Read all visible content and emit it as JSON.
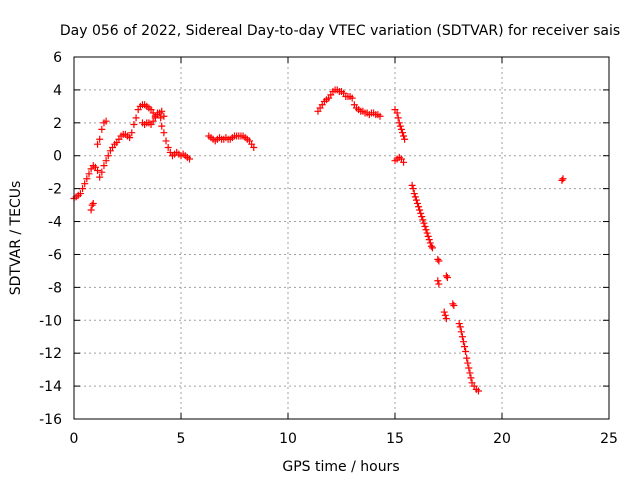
{
  "chart_data": {
    "type": "scatter",
    "title": "Day 056 of 2022, Sidereal Day-to-day VTEC variation (SDTVAR) for receiver sais",
    "xlabel": "GPS time / hours",
    "ylabel": "SDTVAR / TECUs",
    "xlim": [
      0,
      25
    ],
    "ylim": [
      -16,
      6
    ],
    "xticks": [
      0,
      5,
      10,
      15,
      20,
      25
    ],
    "yticks": [
      -16,
      -14,
      -12,
      -10,
      -8,
      -6,
      -4,
      -2,
      0,
      2,
      4,
      6
    ],
    "grid": true,
    "marker": "+",
    "color": "#ff0000",
    "series": [
      {
        "name": "SDTVAR",
        "segments": [
          [
            [
              0.0,
              -2.6
            ],
            [
              0.1,
              -2.5
            ],
            [
              0.2,
              -2.4
            ],
            [
              0.3,
              -2.3
            ],
            [
              0.4,
              -2.0
            ],
            [
              0.5,
              -1.7
            ],
            [
              0.6,
              -1.4
            ],
            [
              0.7,
              -1.1
            ],
            [
              0.8,
              -0.8
            ],
            [
              0.9,
              -0.6
            ],
            [
              1.0,
              -0.7
            ],
            [
              1.1,
              -0.9
            ]
          ],
          [
            [
              0.8,
              -3.3
            ],
            [
              0.85,
              -3.0
            ],
            [
              0.9,
              -2.9
            ]
          ],
          [
            [
              1.1,
              0.7
            ],
            [
              1.2,
              1.0
            ],
            [
              1.3,
              1.6
            ],
            [
              1.4,
              2.0
            ],
            [
              1.5,
              2.1
            ]
          ],
          [
            [
              1.2,
              -1.3
            ],
            [
              1.3,
              -1.0
            ],
            [
              1.4,
              -0.6
            ],
            [
              1.5,
              -0.3
            ],
            [
              1.6,
              0.0
            ],
            [
              1.7,
              0.3
            ],
            [
              1.8,
              0.5
            ],
            [
              1.9,
              0.7
            ],
            [
              2.0,
              0.8
            ],
            [
              2.1,
              1.0
            ],
            [
              2.2,
              1.2
            ],
            [
              2.3,
              1.3
            ],
            [
              2.4,
              1.3
            ],
            [
              2.5,
              1.2
            ],
            [
              2.6,
              1.1
            ],
            [
              2.7,
              1.4
            ],
            [
              2.8,
              1.9
            ],
            [
              2.9,
              2.3
            ],
            [
              3.0,
              2.8
            ],
            [
              3.1,
              3.0
            ],
            [
              3.2,
              3.1
            ],
            [
              3.3,
              3.1
            ],
            [
              3.4,
              3.0
            ],
            [
              3.5,
              2.9
            ],
            [
              3.6,
              2.8
            ],
            [
              3.7,
              2.6
            ],
            [
              3.8,
              2.4
            ],
            [
              3.9,
              2.5
            ],
            [
              4.0,
              2.6
            ],
            [
              4.05,
              2.3
            ],
            [
              4.1,
              1.8
            ],
            [
              4.2,
              1.4
            ],
            [
              4.3,
              0.9
            ],
            [
              4.4,
              0.5
            ],
            [
              4.5,
              0.2
            ],
            [
              4.6,
              0.0
            ],
            [
              4.7,
              0.1
            ],
            [
              4.8,
              0.2
            ],
            [
              4.9,
              0.1
            ],
            [
              5.0,
              0.0
            ],
            [
              5.1,
              0.1
            ],
            [
              5.2,
              0.0
            ],
            [
              5.3,
              -0.1
            ],
            [
              5.4,
              -0.2
            ]
          ],
          [
            [
              3.2,
              2.0
            ],
            [
              3.3,
              1.9
            ],
            [
              3.4,
              2.0
            ],
            [
              3.5,
              2.0
            ],
            [
              3.6,
              1.9
            ],
            [
              3.7,
              2.1
            ],
            [
              3.8,
              2.3
            ],
            [
              3.9,
              2.6
            ],
            [
              4.0,
              2.6
            ],
            [
              4.1,
              2.7
            ],
            [
              4.2,
              2.4
            ]
          ],
          [
            [
              6.3,
              1.2
            ],
            [
              6.4,
              1.1
            ],
            [
              6.5,
              1.0
            ],
            [
              6.6,
              0.9
            ],
            [
              6.7,
              1.0
            ],
            [
              6.8,
              1.1
            ],
            [
              6.9,
              1.0
            ],
            [
              7.0,
              1.0
            ],
            [
              7.1,
              1.1
            ],
            [
              7.2,
              1.0
            ],
            [
              7.3,
              1.0
            ],
            [
              7.4,
              1.1
            ],
            [
              7.5,
              1.2
            ],
            [
              7.6,
              1.2
            ],
            [
              7.7,
              1.2
            ],
            [
              7.8,
              1.2
            ],
            [
              7.9,
              1.2
            ],
            [
              8.0,
              1.1
            ],
            [
              8.1,
              1.0
            ],
            [
              8.2,
              0.9
            ],
            [
              8.3,
              0.7
            ],
            [
              8.4,
              0.5
            ]
          ],
          [
            [
              11.4,
              2.7
            ],
            [
              11.5,
              2.9
            ],
            [
              11.6,
              3.1
            ],
            [
              11.7,
              3.3
            ],
            [
              11.8,
              3.4
            ],
            [
              11.9,
              3.5
            ],
            [
              12.0,
              3.7
            ],
            [
              12.1,
              3.9
            ],
            [
              12.2,
              4.0
            ],
            [
              12.3,
              4.0
            ],
            [
              12.4,
              3.9
            ],
            [
              12.5,
              3.9
            ],
            [
              12.6,
              3.8
            ],
            [
              12.7,
              3.6
            ],
            [
              12.8,
              3.6
            ],
            [
              12.9,
              3.6
            ],
            [
              13.0,
              3.5
            ],
            [
              13.1,
              3.1
            ],
            [
              13.2,
              2.9
            ],
            [
              13.3,
              2.8
            ],
            [
              13.4,
              2.7
            ],
            [
              13.5,
              2.7
            ],
            [
              13.6,
              2.6
            ],
            [
              13.7,
              2.6
            ],
            [
              13.8,
              2.5
            ],
            [
              13.9,
              2.6
            ],
            [
              14.0,
              2.6
            ],
            [
              14.1,
              2.5
            ],
            [
              14.2,
              2.5
            ],
            [
              14.3,
              2.4
            ]
          ],
          [
            [
              15.0,
              2.8
            ],
            [
              15.1,
              2.6
            ],
            [
              15.15,
              2.3
            ],
            [
              15.2,
              2.0
            ],
            [
              15.25,
              1.8
            ],
            [
              15.3,
              1.6
            ],
            [
              15.35,
              1.4
            ],
            [
              15.4,
              1.2
            ],
            [
              15.45,
              1.0
            ]
          ],
          [
            [
              15.0,
              -0.3
            ],
            [
              15.1,
              -0.2
            ],
            [
              15.2,
              -0.1
            ],
            [
              15.3,
              -0.2
            ],
            [
              15.4,
              -0.4
            ]
          ],
          [
            [
              15.8,
              -1.8
            ],
            [
              15.85,
              -2.0
            ],
            [
              15.9,
              -2.3
            ],
            [
              15.95,
              -2.5
            ],
            [
              16.0,
              -2.7
            ],
            [
              16.05,
              -2.9
            ],
            [
              16.1,
              -3.1
            ],
            [
              16.15,
              -3.3
            ],
            [
              16.2,
              -3.5
            ],
            [
              16.25,
              -3.7
            ],
            [
              16.3,
              -3.9
            ],
            [
              16.35,
              -4.1
            ],
            [
              16.4,
              -4.3
            ],
            [
              16.45,
              -4.5
            ],
            [
              16.5,
              -4.7
            ],
            [
              16.55,
              -4.9
            ],
            [
              16.6,
              -5.1
            ],
            [
              16.65,
              -5.3
            ],
            [
              16.7,
              -5.5
            ],
            [
              16.75,
              -5.6
            ]
          ],
          [
            [
              17.0,
              -6.3
            ],
            [
              17.05,
              -6.4
            ],
            [
              17.0,
              -7.6
            ],
            [
              17.05,
              -7.8
            ]
          ],
          [
            [
              17.3,
              -9.5
            ],
            [
              17.35,
              -9.7
            ],
            [
              17.4,
              -9.9
            ],
            [
              17.4,
              -7.3
            ],
            [
              17.45,
              -7.4
            ]
          ],
          [
            [
              17.7,
              -9.0
            ],
            [
              17.75,
              -9.1
            ]
          ],
          [
            [
              18.0,
              -10.2
            ],
            [
              18.05,
              -10.4
            ],
            [
              18.1,
              -10.7
            ],
            [
              18.15,
              -11.0
            ],
            [
              18.2,
              -11.3
            ],
            [
              18.25,
              -11.6
            ],
            [
              18.3,
              -11.9
            ],
            [
              18.35,
              -12.3
            ],
            [
              18.4,
              -12.6
            ],
            [
              18.45,
              -12.9
            ],
            [
              18.5,
              -13.2
            ],
            [
              18.55,
              -13.5
            ],
            [
              18.6,
              -13.8
            ],
            [
              18.7,
              -14.0
            ],
            [
              18.8,
              -14.2
            ],
            [
              18.9,
              -14.3
            ]
          ],
          [
            [
              22.8,
              -1.5
            ],
            [
              22.85,
              -1.4
            ]
          ]
        ]
      }
    ]
  }
}
